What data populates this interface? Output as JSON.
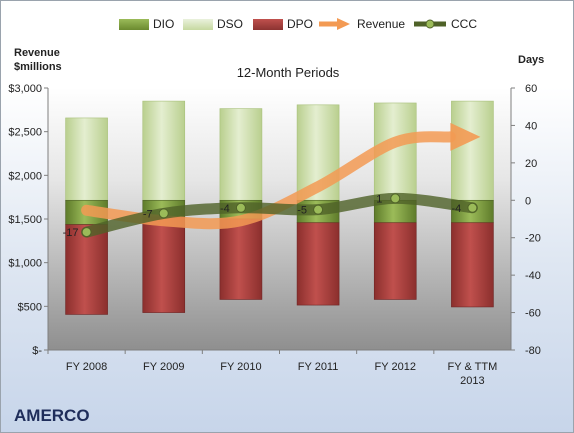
{
  "chart_data": {
    "type": "bar",
    "title": "12-Month Periods",
    "company": "AMERCO",
    "left_axis_label": "Revenue\n$millions",
    "right_axis_label": "Days",
    "left_ylim": [
      0,
      3000
    ],
    "right_ylim": [
      -80,
      60
    ],
    "left_ticks": [
      "$-",
      "$500",
      "$1,000",
      "$1,500",
      "$2,000",
      "$2,500",
      "$3,000"
    ],
    "right_ticks": [
      "-80",
      "-60",
      "-40",
      "-20",
      "0",
      "20",
      "40",
      "60"
    ],
    "categories": [
      "FY 2008",
      "FY 2009",
      "FY 2010",
      "FY 2011",
      "FY 2012",
      "FY & TTM 2013"
    ],
    "legend_position": "top",
    "grid": false,
    "series": [
      {
        "name": "DIO",
        "axis": "right",
        "values": [
          -13,
          -9,
          -10,
          -12,
          -12,
          -12
        ]
      },
      {
        "name": "DSO",
        "axis": "right",
        "values": [
          44,
          53,
          49,
          51,
          52,
          53
        ]
      },
      {
        "name": "DPO",
        "axis": "right",
        "values": [
          -48,
          -51,
          -43,
          -44,
          -41,
          -45
        ]
      },
      {
        "name": "Revenue",
        "axis": "left",
        "values": [
          1600,
          1480,
          1480,
          1870,
          2380,
          2440
        ]
      },
      {
        "name": "CCC",
        "axis": "right",
        "values": [
          -17,
          -7,
          -4,
          -5,
          1,
          -4
        ]
      }
    ],
    "data_labels": [
      "-17",
      "-7",
      "-4",
      "-5",
      "1",
      "-4"
    ],
    "colors": {
      "DIO": "#77933c",
      "DSO": "#d7e4bd",
      "DPO": "#a64a49",
      "Revenue": "#f39a53",
      "CCC": "#4f6228",
      "CCC_marker": "#9bbb59"
    }
  }
}
